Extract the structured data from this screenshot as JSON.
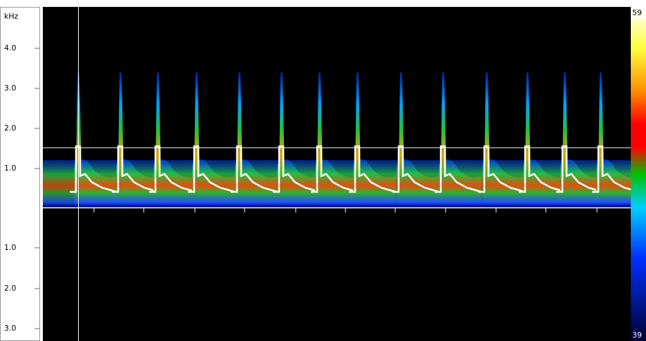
{
  "axis": {
    "unit": "kHz",
    "upper_labels": [
      "4.0",
      "3.0",
      "2.0",
      "1.0"
    ],
    "lower_labels": [
      "1.0",
      "2.0",
      "3.0"
    ]
  },
  "colorbar": {
    "max": "59",
    "min": "39"
  }
}
